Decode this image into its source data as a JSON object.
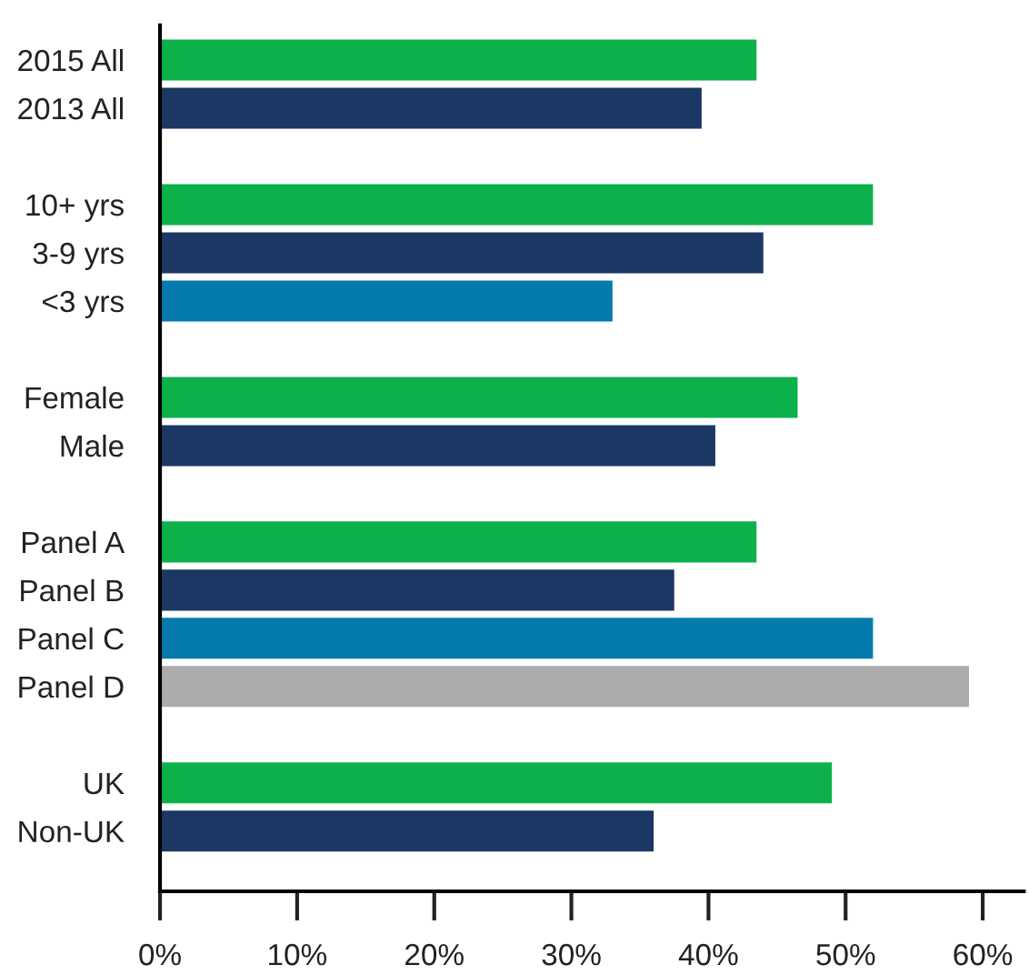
{
  "chart_data": {
    "type": "bar",
    "orientation": "horizontal",
    "categories": [
      "2015 All",
      "2013 All",
      null,
      "10+ yrs",
      "3-9 yrs",
      "<3 yrs",
      null,
      "Female",
      "Male",
      null,
      "Panel A",
      "Panel B",
      "Panel C",
      "Panel D",
      null,
      "UK",
      "Non-UK"
    ],
    "values": [
      43.5,
      39.5,
      null,
      52,
      44,
      33,
      null,
      46.5,
      40.5,
      null,
      43.5,
      37.5,
      52,
      59,
      null,
      49,
      36
    ],
    "colors": [
      "#0db14b",
      "#1b3764",
      null,
      "#0db14b",
      "#1b3764",
      "#047bac",
      null,
      "#0db14b",
      "#1b3764",
      null,
      "#0db14b",
      "#1b3764",
      "#047bac",
      "#adacad",
      null,
      "#0db14b",
      "#1b3764"
    ],
    "xlim": [
      0,
      63
    ],
    "xticks": [
      {
        "value": 0,
        "label": "0%"
      },
      {
        "value": 10,
        "label": "10%"
      },
      {
        "value": 20,
        "label": "20%"
      },
      {
        "value": 30,
        "label": "30%"
      },
      {
        "value": 40,
        "label": "40%"
      },
      {
        "value": 50,
        "label": "50%"
      },
      {
        "value": 60,
        "label": "60%"
      }
    ],
    "grid": false,
    "legend": false
  }
}
